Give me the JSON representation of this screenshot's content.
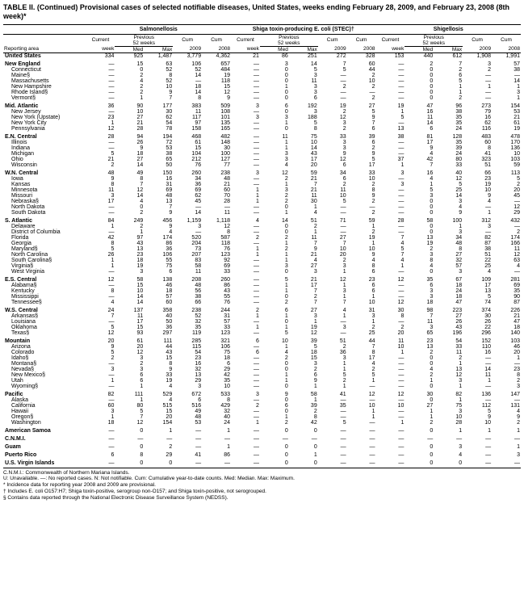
{
  "title": "TABLE II. (Continued) Provisional cases of selected notifiable diseases, United States, weeks ending February 28, 2009, and February 23, 2008 (8th week)*",
  "diseases": [
    "Salmonellosis",
    "Shiga toxin-producing E. coli (STEC)†",
    "Shigellosis"
  ],
  "group_labels": {
    "current": "Current",
    "prev": "Previous\n52 weeks",
    "cum": "Cum",
    "cum2": "Cum"
  },
  "cols": [
    "Reporting area",
    "week",
    "Med",
    "Max",
    "2009",
    "2008",
    "week",
    "Med",
    "Max",
    "2009",
    "2008",
    "week",
    "Med",
    "Max",
    "2009",
    "2008"
  ],
  "colors": {
    "text": "#000000",
    "bg": "#ffffff",
    "rule": "#000000"
  },
  "font": {
    "family": "Arial",
    "base_size": 7
  },
  "sections": [
    {
      "region": [
        "United States",
        "334",
        "925",
        "1,487",
        "3,779",
        "4,362",
        "21",
        "86",
        "251",
        "272",
        "328",
        "153",
        "440",
        "612",
        "1,908",
        "1,991"
      ],
      "subs": []
    },
    {
      "region": [
        "New England",
        "—",
        "15",
        "63",
        "106",
        "657",
        "—",
        "3",
        "14",
        "7",
        "60",
        "—",
        "2",
        "7",
        "3",
        "57"
      ],
      "subs": [
        [
          "Connecticut",
          "—",
          "0",
          "52",
          "52",
          "484",
          "—",
          "0",
          "5",
          "5",
          "44",
          "—",
          "0",
          "2",
          "2",
          "38"
        ],
        [
          "Maine§",
          "—",
          "2",
          "8",
          "14",
          "19",
          "—",
          "0",
          "3",
          "—",
          "2",
          "—",
          "0",
          "6",
          "—",
          "—"
        ],
        [
          "Massachusetts",
          "—",
          "4",
          "52",
          "—",
          "118",
          "—",
          "0",
          "11",
          "—",
          "10",
          "—",
          "0",
          "5",
          "—",
          "14"
        ],
        [
          "New Hampshire",
          "—",
          "2",
          "10",
          "18",
          "15",
          "—",
          "1",
          "3",
          "2",
          "2",
          "—",
          "0",
          "1",
          "1",
          "1"
        ],
        [
          "Rhode Island§",
          "—",
          "2",
          "9",
          "14",
          "12",
          "—",
          "0",
          "3",
          "—",
          "—",
          "—",
          "0",
          "1",
          "—",
          "3"
        ],
        [
          "Vermont§",
          "—",
          "1",
          "7",
          "8",
          "9",
          "—",
          "0",
          "6",
          "—",
          "2",
          "—",
          "0",
          "2",
          "—",
          "1"
        ]
      ]
    },
    {
      "region": [
        "Mid. Atlantic",
        "36",
        "90",
        "177",
        "383",
        "509",
        "3",
        "6",
        "192",
        "19",
        "27",
        "19",
        "47",
        "96",
        "273",
        "154"
      ],
      "subs": [
        [
          "New Jersey",
          "—",
          "10",
          "30",
          "11",
          "108",
          "—",
          "0",
          "3",
          "2",
          "5",
          "1",
          "16",
          "38",
          "79",
          "53"
        ],
        [
          "New York (Upstate)",
          "23",
          "27",
          "62",
          "117",
          "101",
          "3",
          "3",
          "188",
          "12",
          "9",
          "5",
          "11",
          "35",
          "16",
          "21"
        ],
        [
          "New York City",
          "1",
          "21",
          "54",
          "97",
          "135",
          "—",
          "1",
          "5",
          "3",
          "7",
          "—",
          "14",
          "35",
          "62",
          "61"
        ],
        [
          "Pennsylvania",
          "12",
          "28",
          "78",
          "158",
          "165",
          "—",
          "0",
          "8",
          "2",
          "6",
          "13",
          "6",
          "24",
          "116",
          "19"
        ]
      ]
    },
    {
      "region": [
        "E.N. Central",
        "28",
        "94",
        "194",
        "468",
        "482",
        "—",
        "11",
        "75",
        "33",
        "39",
        "38",
        "81",
        "128",
        "483",
        "478"
      ],
      "subs": [
        [
          "Illinois",
          "—",
          "26",
          "72",
          "61",
          "148",
          "—",
          "1",
          "10",
          "3",
          "6",
          "—",
          "17",
          "35",
          "60",
          "170"
        ],
        [
          "Indiana",
          "—",
          "9",
          "53",
          "15",
          "30",
          "—",
          "1",
          "14",
          "3",
          "2",
          "—",
          "9",
          "39",
          "8",
          "136"
        ],
        [
          "Michigan",
          "5",
          "18",
          "38",
          "104",
          "100",
          "—",
          "3",
          "43",
          "9",
          "9",
          "—",
          "4",
          "24",
          "41",
          "10"
        ],
        [
          "Ohio",
          "21",
          "27",
          "65",
          "212",
          "127",
          "—",
          "3",
          "17",
          "12",
          "5",
          "37",
          "42",
          "80",
          "323",
          "103"
        ],
        [
          "Wisconsin",
          "2",
          "14",
          "50",
          "76",
          "77",
          "—",
          "4",
          "20",
          "6",
          "17",
          "1",
          "7",
          "33",
          "51",
          "59"
        ]
      ]
    },
    {
      "region": [
        "W.N. Central",
        "48",
        "49",
        "150",
        "260",
        "238",
        "3",
        "12",
        "59",
        "34",
        "33",
        "3",
        "16",
        "40",
        "66",
        "113"
      ],
      "subs": [
        [
          "Iowa",
          "9",
          "8",
          "16",
          "34",
          "48",
          "—",
          "2",
          "21",
          "6",
          "10",
          "—",
          "4",
          "12",
          "23",
          "5"
        ],
        [
          "Kansas",
          "8",
          "7",
          "31",
          "36",
          "21",
          "—",
          "1",
          "7",
          "2",
          "2",
          "3",
          "1",
          "5",
          "19",
          "2"
        ],
        [
          "Minnesota",
          "11",
          "12",
          "69",
          "69",
          "60",
          "1",
          "3",
          "21",
          "11",
          "8",
          "—",
          "5",
          "25",
          "10",
          "20"
        ],
        [
          "Missouri",
          "3",
          "14",
          "48",
          "62",
          "70",
          "1",
          "2",
          "11",
          "10",
          "9",
          "—",
          "3",
          "14",
          "9",
          "45"
        ],
        [
          "Nebraska§",
          "17",
          "4",
          "13",
          "45",
          "28",
          "1",
          "2",
          "30",
          "5",
          "2",
          "—",
          "0",
          "3",
          "4",
          "—"
        ],
        [
          "North Dakota",
          "—",
          "0",
          "7",
          "—",
          "—",
          "—",
          "0",
          "1",
          "—",
          "—",
          "—",
          "0",
          "4",
          "—",
          "12"
        ],
        [
          "South Dakota",
          "—",
          "2",
          "9",
          "14",
          "11",
          "—",
          "1",
          "4",
          "—",
          "2",
          "—",
          "0",
          "9",
          "1",
          "29"
        ]
      ]
    },
    {
      "region": [
        "S. Atlantic",
        "84",
        "249",
        "456",
        "1,159",
        "1,118",
        "4",
        "14",
        "51",
        "71",
        "59",
        "28",
        "58",
        "100",
        "312",
        "432"
      ],
      "subs": [
        [
          "Delaware",
          "1",
          "2",
          "9",
          "3",
          "12",
          "—",
          "0",
          "2",
          "—",
          "1",
          "—",
          "0",
          "1",
          "3",
          "—"
        ],
        [
          "District of Columbia",
          "—",
          "1",
          "4",
          "—",
          "8",
          "—",
          "0",
          "1",
          "—",
          "2",
          "—",
          "0",
          "3",
          "—",
          "2"
        ],
        [
          "Florida",
          "42",
          "97",
          "174",
          "520",
          "587",
          "2",
          "2",
          "11",
          "27",
          "19",
          "7",
          "13",
          "34",
          "82",
          "174"
        ],
        [
          "Georgia",
          "8",
          "43",
          "86",
          "204",
          "118",
          "—",
          "1",
          "7",
          "7",
          "1",
          "4",
          "19",
          "48",
          "87",
          "166"
        ],
        [
          "Maryland§",
          "5",
          "13",
          "36",
          "73",
          "76",
          "1",
          "2",
          "9",
          "10",
          "10",
          "5",
          "2",
          "8",
          "38",
          "11"
        ],
        [
          "North Carolina",
          "26",
          "23",
          "106",
          "207",
          "123",
          "1",
          "1",
          "21",
          "20",
          "9",
          "7",
          "3",
          "27",
          "51",
          "12"
        ],
        [
          "South Carolina§",
          "1",
          "18",
          "55",
          "83",
          "92",
          "—",
          "1",
          "4",
          "2",
          "4",
          "4",
          "8",
          "32",
          "22",
          "63"
        ],
        [
          "Virginia§",
          "1",
          "19",
          "75",
          "58",
          "69",
          "—",
          "3",
          "27",
          "3",
          "8",
          "1",
          "4",
          "57",
          "25",
          "4"
        ],
        [
          "West Virginia",
          "—",
          "3",
          "6",
          "11",
          "33",
          "—",
          "0",
          "3",
          "1",
          "6",
          "—",
          "0",
          "3",
          "4",
          "—"
        ]
      ]
    },
    {
      "region": [
        "E.S. Central",
        "12",
        "58",
        "138",
        "208",
        "260",
        "—",
        "5",
        "21",
        "12",
        "23",
        "12",
        "35",
        "67",
        "109",
        "281"
      ],
      "subs": [
        [
          "Alabama§",
          "—",
          "15",
          "46",
          "48",
          "86",
          "—",
          "1",
          "17",
          "1",
          "6",
          "—",
          "6",
          "18",
          "17",
          "69"
        ],
        [
          "Kentucky",
          "8",
          "10",
          "18",
          "56",
          "43",
          "—",
          "1",
          "7",
          "3",
          "6",
          "—",
          "3",
          "24",
          "13",
          "35"
        ],
        [
          "Mississippi",
          "—",
          "14",
          "57",
          "38",
          "55",
          "—",
          "0",
          "2",
          "1",
          "1",
          "—",
          "3",
          "18",
          "5",
          "90"
        ],
        [
          "Tennessee§",
          "4",
          "14",
          "60",
          "66",
          "76",
          "—",
          "2",
          "7",
          "7",
          "10",
          "12",
          "18",
          "47",
          "74",
          "87"
        ]
      ]
    },
    {
      "region": [
        "W.S. Central",
        "24",
        "137",
        "358",
        "238",
        "244",
        "2",
        "6",
        "27",
        "4",
        "31",
        "30",
        "98",
        "223",
        "374",
        "226"
      ],
      "subs": [
        [
          "Arkansas§",
          "7",
          "11",
          "40",
          "52",
          "31",
          "1",
          "1",
          "3",
          "1",
          "3",
          "8",
          "7",
          "27",
          "30",
          "21"
        ],
        [
          "Louisiana",
          "—",
          "17",
          "50",
          "32",
          "57",
          "—",
          "0",
          "1",
          "—",
          "1",
          "—",
          "11",
          "26",
          "26",
          "47"
        ],
        [
          "Oklahoma",
          "5",
          "15",
          "36",
          "35",
          "33",
          "1",
          "1",
          "19",
          "3",
          "2",
          "2",
          "3",
          "43",
          "22",
          "18"
        ],
        [
          "Texas§",
          "12",
          "93",
          "297",
          "119",
          "123",
          "—",
          "5",
          "12",
          "—",
          "25",
          "20",
          "65",
          "196",
          "296",
          "140"
        ]
      ]
    },
    {
      "region": [
        "Mountain",
        "20",
        "61",
        "111",
        "285",
        "321",
        "6",
        "10",
        "39",
        "51",
        "44",
        "11",
        "23",
        "54",
        "152",
        "103"
      ],
      "subs": [
        [
          "Arizona",
          "9",
          "20",
          "44",
          "115",
          "106",
          "—",
          "1",
          "5",
          "2",
          "7",
          "10",
          "13",
          "33",
          "110",
          "46"
        ],
        [
          "Colorado",
          "5",
          "12",
          "43",
          "54",
          "75",
          "6",
          "4",
          "18",
          "36",
          "8",
          "1",
          "2",
          "11",
          "16",
          "20"
        ],
        [
          "Idaho§",
          "2",
          "3",
          "15",
          "23",
          "18",
          "—",
          "2",
          "15",
          "3",
          "17",
          "—",
          "0",
          "2",
          "—",
          "1"
        ],
        [
          "Montana§",
          "—",
          "2",
          "8",
          "16",
          "6",
          "—",
          "0",
          "3",
          "1",
          "4",
          "—",
          "0",
          "1",
          "—",
          "—"
        ],
        [
          "Nevada§",
          "3",
          "3",
          "9",
          "32",
          "29",
          "—",
          "0",
          "2",
          "1",
          "2",
          "—",
          "4",
          "13",
          "14",
          "23"
        ],
        [
          "New Mexico§",
          "—",
          "6",
          "33",
          "13",
          "42",
          "—",
          "1",
          "6",
          "5",
          "5",
          "—",
          "2",
          "12",
          "11",
          "8"
        ],
        [
          "Utah",
          "1",
          "6",
          "19",
          "29",
          "35",
          "—",
          "1",
          "9",
          "2",
          "1",
          "—",
          "1",
          "3",
          "1",
          "2"
        ],
        [
          "Wyoming§",
          "—",
          "1",
          "4",
          "3",
          "10",
          "—",
          "0",
          "1",
          "1",
          "—",
          "—",
          "0",
          "1",
          "—",
          "3"
        ]
      ]
    },
    {
      "region": [
        "Pacific",
        "82",
        "111",
        "529",
        "672",
        "533",
        "3",
        "9",
        "58",
        "41",
        "12",
        "12",
        "30",
        "82",
        "136",
        "147"
      ],
      "subs": [
        [
          "Alaska",
          "—",
          "1",
          "4",
          "6",
          "8",
          "—",
          "0",
          "1",
          "—",
          "—",
          "—",
          "0",
          "1",
          "—",
          "—"
        ],
        [
          "California",
          "60",
          "80",
          "515",
          "516",
          "429",
          "2",
          "6",
          "39",
          "35",
          "10",
          "10",
          "27",
          "75",
          "112",
          "131"
        ],
        [
          "Hawaii",
          "3",
          "5",
          "15",
          "49",
          "32",
          "—",
          "0",
          "2",
          "—",
          "1",
          "—",
          "1",
          "3",
          "5",
          "4"
        ],
        [
          "Oregon§",
          "1",
          "7",
          "20",
          "48",
          "40",
          "—",
          "1",
          "8",
          "—",
          "1",
          "—",
          "1",
          "10",
          "9",
          "9"
        ],
        [
          "Washington",
          "18",
          "12",
          "154",
          "53",
          "24",
          "1",
          "2",
          "42",
          "5",
          "—",
          "1",
          "2",
          "28",
          "10",
          "2"
        ]
      ]
    },
    {
      "region": [
        "American Samoa",
        "—",
        "0",
        "1",
        "—",
        "1",
        "—",
        "0",
        "0",
        "—",
        "—",
        "—",
        "0",
        "1",
        "1",
        "1"
      ],
      "subs": []
    },
    {
      "region": [
        "C.N.M.I.",
        "—",
        "—",
        "—",
        "—",
        "—",
        "—",
        "—",
        "—",
        "—",
        "—",
        "—",
        "—",
        "—",
        "—",
        "—"
      ],
      "subs": []
    },
    {
      "region": [
        "Guam",
        "—",
        "0",
        "2",
        "—",
        "1",
        "—",
        "0",
        "0",
        "—",
        "—",
        "—",
        "0",
        "3",
        "—",
        "1"
      ],
      "subs": []
    },
    {
      "region": [
        "Puerto Rico",
        "6",
        "8",
        "29",
        "41",
        "86",
        "—",
        "0",
        "1",
        "—",
        "—",
        "—",
        "0",
        "4",
        "—",
        "3"
      ],
      "subs": []
    },
    {
      "region": [
        "U.S. Virgin Islands",
        "—",
        "0",
        "0",
        "—",
        "—",
        "—",
        "0",
        "0",
        "—",
        "—",
        "—",
        "0",
        "0",
        "—",
        "—"
      ],
      "subs": []
    }
  ],
  "footnotes": [
    "C.N.M.I.: Commonwealth of Northern Mariana Islands.",
    "U: Unavailable.   —: No reported cases.   N: Not notifiable.   Cum: Cumulative year-to-date counts.   Med: Median.   Max: Maximum.",
    "* Incidence data for reporting year 2008 and 2009 are provisional.",
    "† Includes E. coli O157:H7; Shiga toxin-positive, serogroup non-O157; and Shiga toxin-positive, not serogrouped.",
    "§ Contains data reported through the National Electronic Disease Surveillance System (NEDSS)."
  ]
}
